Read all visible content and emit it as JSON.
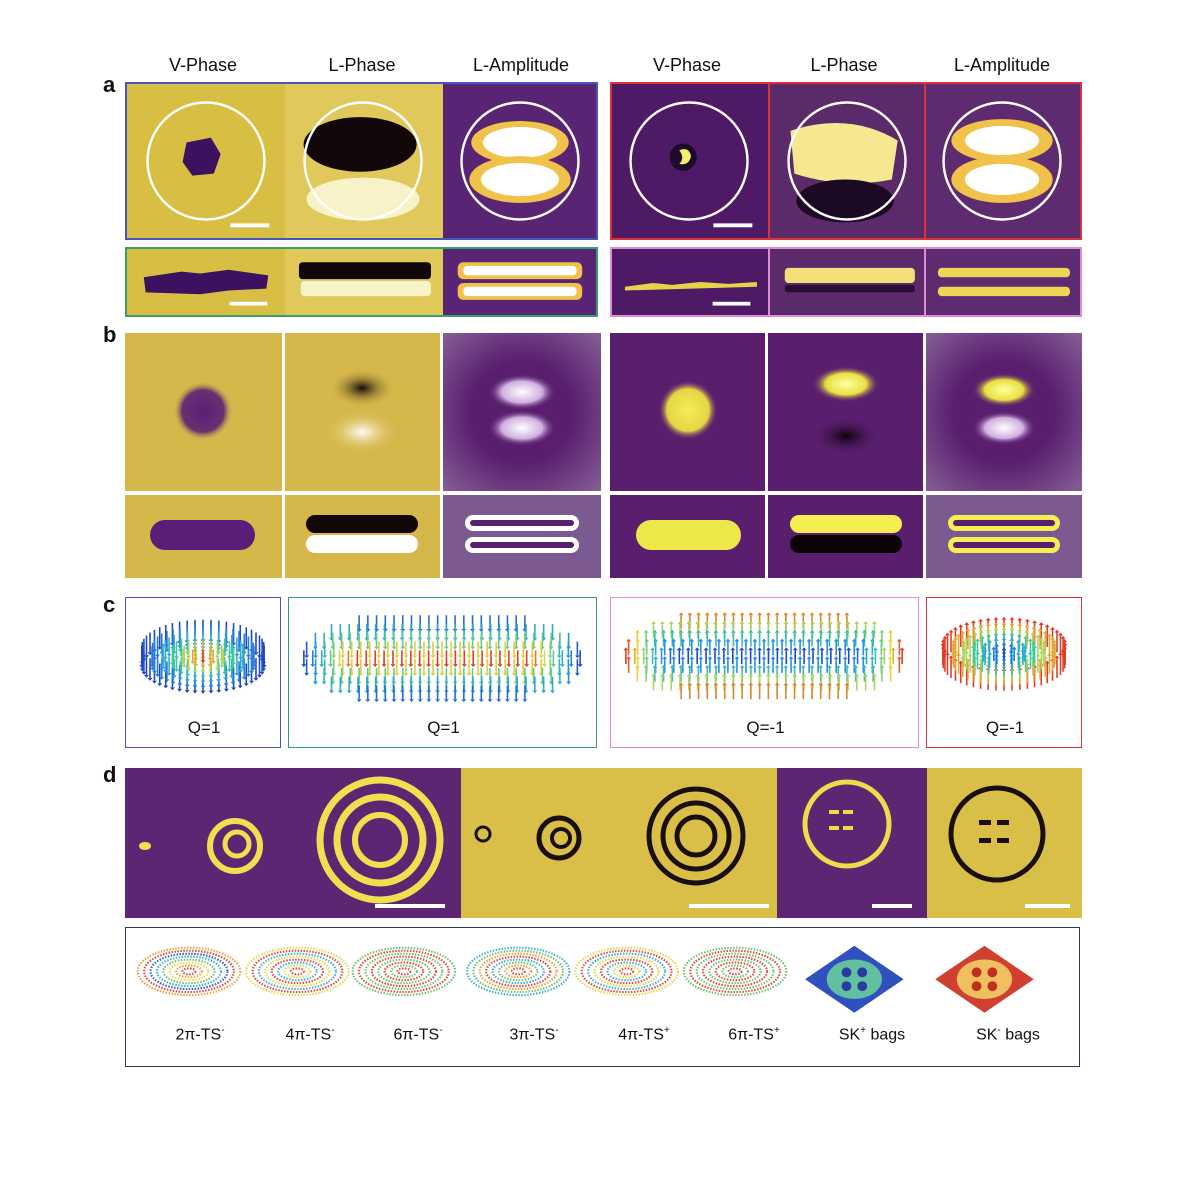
{
  "panels": {
    "a": "a",
    "b": "b",
    "c": "c",
    "d": "d"
  },
  "headers": [
    "V-Phase",
    "L-Phase",
    "L-Amplitude",
    "V-Phase",
    "L-Phase",
    "L-Amplitude"
  ],
  "colors": {
    "gold": "#d9bd3c",
    "purple": "#5e2170",
    "yellow": "#f5ee4e",
    "dark": "#1a0a10",
    "blue_frame": "#4a55b8",
    "red_frame": "#d8323a",
    "green_frame": "#36a06a",
    "pink_frame": "#e08ad8",
    "navy_frame": "#2b3a55"
  },
  "c_labels": [
    "Q=1",
    "Q=1",
    "Q=-1",
    "Q=-1"
  ],
  "d_labels": [
    {
      "main": "2π-TS",
      "sup": "-"
    },
    {
      "main": "4π-TS",
      "sup": "-"
    },
    {
      "main": "6π-TS",
      "sup": "-"
    },
    {
      "main": "3π-TS",
      "sup": "-"
    },
    {
      "main": "4π-TS",
      "sup": "+"
    },
    {
      "main": "6π-TS",
      "sup": "+"
    },
    {
      "main": "SK",
      "sup": "+",
      "tail": " bags"
    },
    {
      "main": "SK",
      "sup": "-",
      "tail": " bags"
    }
  ]
}
